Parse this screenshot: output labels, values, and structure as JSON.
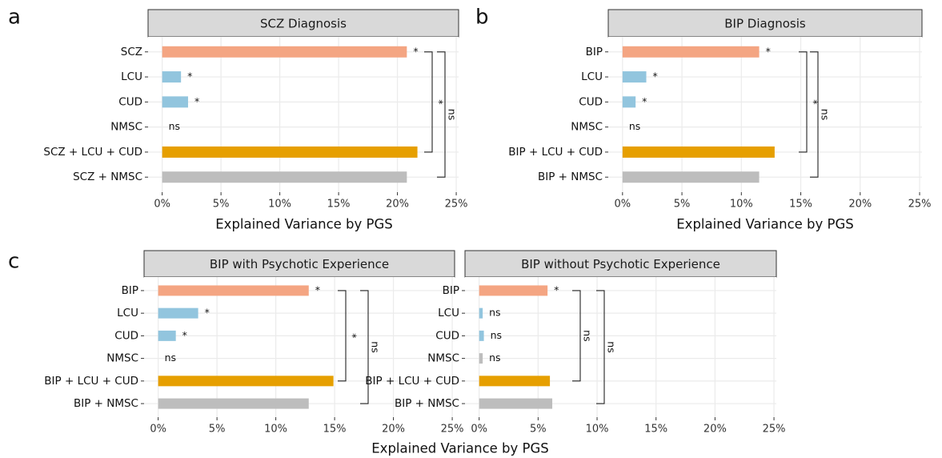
{
  "panel_labels": [
    "a",
    "b",
    "c"
  ],
  "chart_data": [
    {
      "type": "bar",
      "orientation": "horizontal",
      "title": "SCZ Diagnosis",
      "categories": [
        "SCZ",
        "LCU",
        "CUD",
        "NMSC",
        "SCZ + LCU + CUD",
        "SCZ + NMSC"
      ],
      "values": [
        20.8,
        1.6,
        2.2,
        0,
        21.7,
        20.8
      ],
      "colors": [
        "#f4a582",
        "#92c5de",
        "#92c5de",
        "#bdbdbd",
        "#e69f00",
        "#bdbdbd"
      ],
      "bar_annotations": [
        "*",
        "*",
        "*",
        "ns"
      ],
      "brackets": [
        {
          "label": "*"
        },
        {
          "label": "ns"
        }
      ],
      "xlim": [
        -1.2,
        25.2
      ],
      "xticks": [
        {
          "value": 0,
          "label": "0%"
        },
        {
          "value": 5,
          "label": "5%"
        },
        {
          "value": 10,
          "label": "10%"
        },
        {
          "value": 15,
          "label": "15%"
        },
        {
          "value": 20,
          "label": "20%"
        },
        {
          "value": 25,
          "label": "25%"
        }
      ],
      "xlabel": "Explained Variance by PGS",
      "grid": true
    },
    {
      "type": "bar",
      "orientation": "horizontal",
      "title": "BIP Diagnosis",
      "categories": [
        "BIP",
        "LCU",
        "CUD",
        "NMSC",
        "BIP + LCU + CUD",
        "BIP + NMSC"
      ],
      "values": [
        11.5,
        2.0,
        1.1,
        0,
        12.8,
        11.5
      ],
      "colors": [
        "#f4a582",
        "#92c5de",
        "#92c5de",
        "#bdbdbd",
        "#e69f00",
        "#bdbdbd"
      ],
      "bar_annotations": [
        "*",
        "*",
        "*",
        "ns"
      ],
      "brackets": [
        {
          "label": "*"
        },
        {
          "label": "ns"
        }
      ],
      "xlim": [
        -1.2,
        25.2
      ],
      "xticks": [
        {
          "value": 0,
          "label": "0%"
        },
        {
          "value": 5,
          "label": "5%"
        },
        {
          "value": 10,
          "label": "10%"
        },
        {
          "value": 15,
          "label": "15%"
        },
        {
          "value": 20,
          "label": "20%"
        },
        {
          "value": 25,
          "label": "25%"
        }
      ],
      "xlabel": "Explained Variance by PGS",
      "grid": true
    },
    {
      "type": "bar",
      "orientation": "horizontal",
      "title": "BIP with Psychotic Experience",
      "categories": [
        "BIP",
        "LCU",
        "CUD",
        "NMSC",
        "BIP + LCU + CUD",
        "BIP + NMSC"
      ],
      "values": [
        12.8,
        3.4,
        1.5,
        0,
        14.9,
        12.8
      ],
      "colors": [
        "#f4a582",
        "#92c5de",
        "#92c5de",
        "#bdbdbd",
        "#e69f00",
        "#bdbdbd"
      ],
      "bar_annotations": [
        "*",
        "*",
        "*",
        "ns"
      ],
      "brackets": [
        {
          "label": "*"
        },
        {
          "label": "ns"
        }
      ],
      "xlim": [
        -1.2,
        25.2
      ],
      "xticks": [
        {
          "value": 0,
          "label": "0%"
        },
        {
          "value": 5,
          "label": "5%"
        },
        {
          "value": 10,
          "label": "10%"
        },
        {
          "value": 15,
          "label": "15%"
        },
        {
          "value": 20,
          "label": "20%"
        },
        {
          "value": 25,
          "label": "25%"
        }
      ],
      "xlabel": "Explained Variance by PGS",
      "grid": true
    },
    {
      "type": "bar",
      "orientation": "horizontal",
      "title": "BIP without Psychotic Experience",
      "categories": [
        "BIP",
        "LCU",
        "CUD",
        "NMSC",
        "BIP + LCU + CUD",
        "BIP + NMSC"
      ],
      "values": [
        5.8,
        0.3,
        0.4,
        0.3,
        6.0,
        6.2
      ],
      "colors": [
        "#f4a582",
        "#92c5de",
        "#92c5de",
        "#bdbdbd",
        "#e69f00",
        "#bdbdbd"
      ],
      "bar_annotations": [
        "*",
        "ns",
        "ns",
        "ns"
      ],
      "brackets": [
        {
          "label": "ns"
        },
        {
          "label": "ns"
        }
      ],
      "xlim": [
        -1.2,
        25.2
      ],
      "xticks": [
        {
          "value": 0,
          "label": "0%"
        },
        {
          "value": 5,
          "label": "5%"
        },
        {
          "value": 10,
          "label": "10%"
        },
        {
          "value": 15,
          "label": "15%"
        },
        {
          "value": 20,
          "label": "20%"
        },
        {
          "value": 25,
          "label": "25%"
        }
      ],
      "grid": true
    }
  ]
}
